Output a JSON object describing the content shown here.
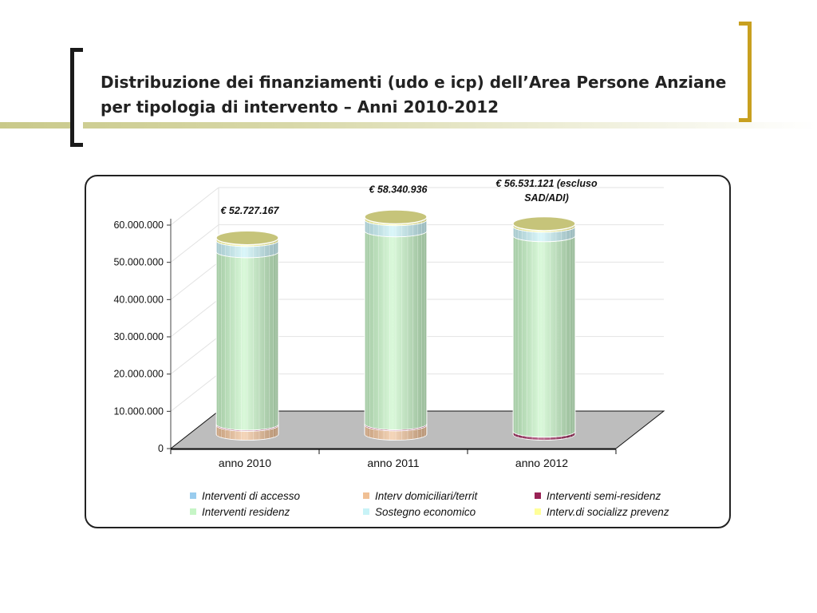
{
  "slide": {
    "title_line1": "Distribuzione dei finanziamenti (udo e icp) dell’Area Persone Anziane",
    "title_line2": "per tipologia di intervento – Anni 2010-2012",
    "accent_color": "#c8a020"
  },
  "chart_data": {
    "type": "bar",
    "stacked": true,
    "style": "3d-cylinder",
    "categories": [
      "anno 2010",
      "anno 2011",
      "anno 2012"
    ],
    "ylim": [
      0,
      60000000
    ],
    "yticks": [
      0,
      10000000,
      20000000,
      30000000,
      40000000,
      50000000,
      60000000
    ],
    "ytick_labels": [
      "0",
      "10.000.000",
      "20.000.000",
      "30.000.000",
      "40.000.000",
      "50.000.000",
      "60.000.000"
    ],
    "grid": true,
    "legend_position": "bottom",
    "totals_labels": [
      "€ 52.727.167",
      "€ 58.340.936",
      "€ 56.531.121 (escluso SAD/ADI)"
    ],
    "series": [
      {
        "name": "Interventi di accesso",
        "color": "#99ccee",
        "values": [
          0,
          0,
          0
        ]
      },
      {
        "name": "Interv domiciliari/territ",
        "color": "#f0c095",
        "values": [
          2400000,
          2500000,
          0
        ]
      },
      {
        "name": "Interventi semi-residenz",
        "color": "#992255",
        "values": [
          300000,
          300000,
          800000
        ]
      },
      {
        "name": "Interventi residenz",
        "color": "#c6f5c6",
        "values": [
          46300000,
          51800000,
          52500000
        ]
      },
      {
        "name": "Sostegno economico",
        "color": "#c8f3f7",
        "values": [
          3000000,
          3000000,
          2500000
        ]
      },
      {
        "name": "Interv.di socializz prevenz",
        "color": "#ffff99",
        "values": [
          727167,
          740936,
          731121
        ]
      }
    ]
  }
}
